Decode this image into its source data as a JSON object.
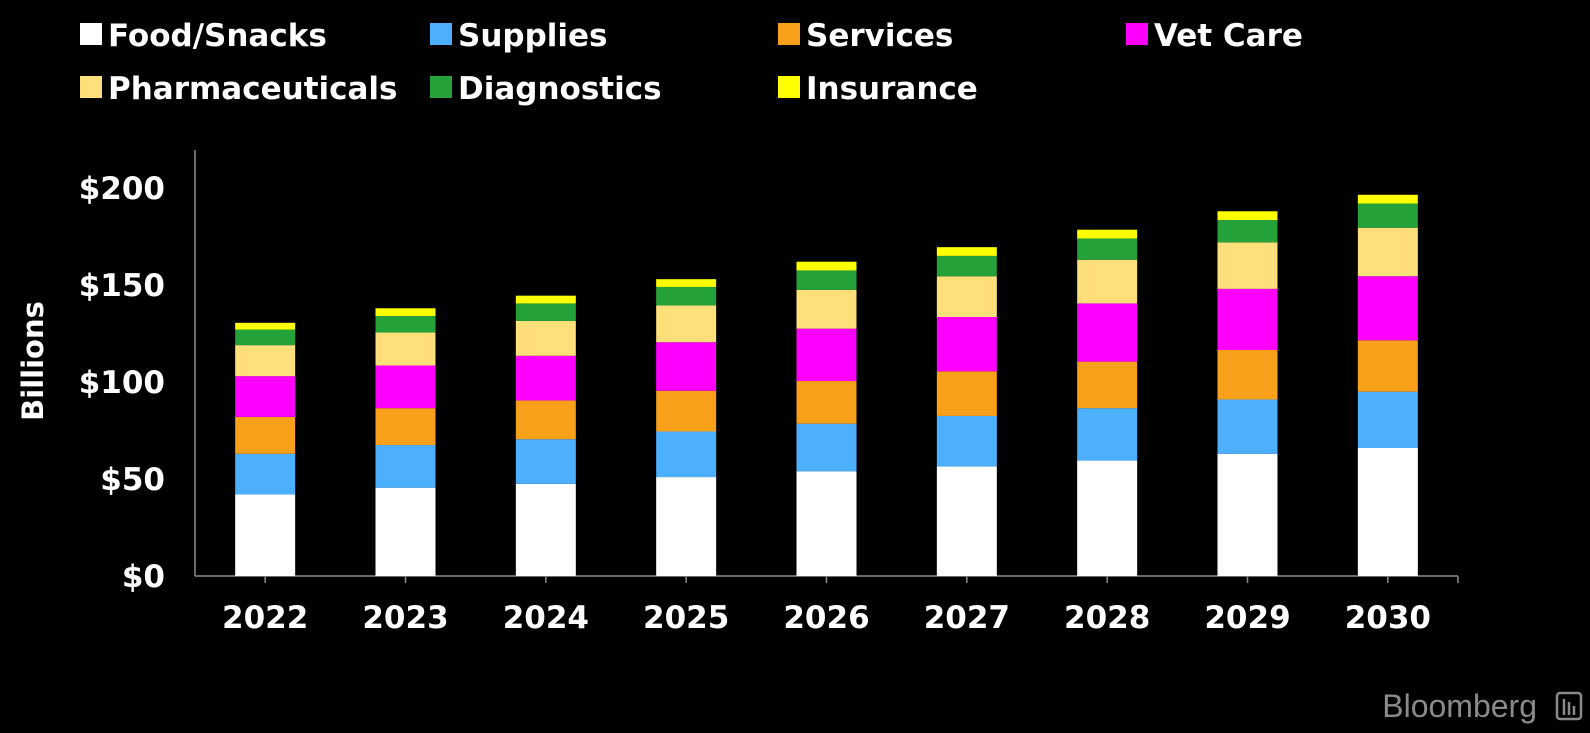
{
  "chart_data": {
    "type": "bar",
    "stacked": true,
    "categories": [
      "2022",
      "2023",
      "2024",
      "2025",
      "2026",
      "2027",
      "2028",
      "2029",
      "2030"
    ],
    "series": [
      {
        "name": "Food/Snacks",
        "color": "#ffffff",
        "values": [
          42,
          45.5,
          47.5,
          51,
          54,
          56.5,
          59.5,
          63,
          66
        ]
      },
      {
        "name": "Supplies",
        "color": "#4db0ff",
        "values": [
          21,
          22,
          23,
          23.5,
          24.5,
          26,
          27,
          28,
          29
        ]
      },
      {
        "name": "Services",
        "color": "#f9a01b",
        "values": [
          19,
          19,
          20,
          21,
          22,
          23,
          24,
          25.5,
          26.5
        ]
      },
      {
        "name": "Vet Care",
        "color": "#ff00ff",
        "values": [
          21,
          22,
          23,
          25,
          27,
          28,
          30,
          31.5,
          33
        ]
      },
      {
        "name": "Pharmaceuticals",
        "color": "#ffdf7a",
        "values": [
          16,
          17,
          18,
          19,
          20,
          21,
          22.5,
          24,
          25
        ]
      },
      {
        "name": "Diagnostics",
        "color": "#25a13a",
        "values": [
          8,
          8.5,
          9,
          9.5,
          10,
          10.5,
          11,
          11.5,
          12.5
        ]
      },
      {
        "name": "Insurance",
        "color": "#ffff00",
        "values": [
          3.5,
          4,
          4,
          4,
          4.5,
          4.5,
          4.5,
          4.5,
          4.5
        ]
      }
    ],
    "ylabel": "Billions",
    "yticks": [
      "$0",
      "$50",
      "$100",
      "$150",
      "$200"
    ],
    "ylim": [
      0,
      220
    ],
    "grid": false,
    "legend_position": "top"
  },
  "branding": {
    "text": "Bloomberg"
  }
}
